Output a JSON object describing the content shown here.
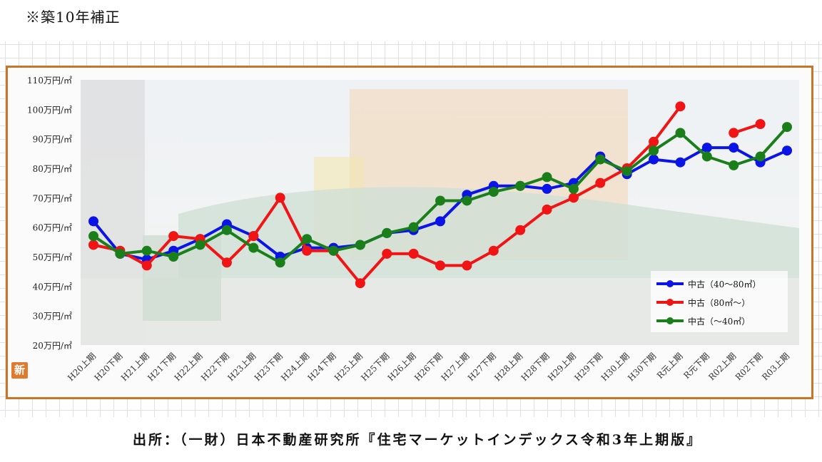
{
  "note": "※築10年補正",
  "source": "出所：（一財）日本不動産研究所『住宅マーケットインデックス令和3年上期版』",
  "badge": "新",
  "chart_data": {
    "type": "line",
    "title": "",
    "xlabel": "",
    "ylabel": "",
    "ylim": [
      20,
      110
    ],
    "y_ticks": [
      110,
      100,
      90,
      80,
      70,
      60,
      50,
      40,
      30,
      20
    ],
    "y_tick_labels": [
      "110万円/㎡",
      "100万円/㎡",
      "90万円/㎡",
      "80万円/㎡",
      "70万円/㎡",
      "60万円/㎡",
      "50万円/㎡",
      "40万円/㎡",
      "30万円/㎡",
      "20万円/㎡"
    ],
    "categories": [
      "H20上期",
      "H20下期",
      "H21上期",
      "H21下期",
      "H22上期",
      "H22下期",
      "H23上期",
      "H23下期",
      "H24上期",
      "H24下期",
      "H25上期",
      "H25下期",
      "H26上期",
      "H26下期",
      "H27上期",
      "H27下期",
      "H28上期",
      "H28下期",
      "H29上期",
      "H29下期",
      "H30上期",
      "H30下期",
      "R元上期",
      "R元下期",
      "R02上期",
      "R02下期",
      "R03上期"
    ],
    "legend_position": "bottom-right",
    "series": [
      {
        "name": "中古（40～80㎡）",
        "color": "#0a14e6",
        "values": [
          62,
          51,
          49,
          52,
          56,
          61,
          57,
          50,
          53,
          53,
          54,
          58,
          59,
          62,
          71,
          74,
          74,
          73,
          75,
          84,
          78,
          83,
          82,
          87,
          87,
          82,
          86
        ]
      },
      {
        "name": "中古（80㎡～）",
        "color": "#f01414",
        "values": [
          54,
          52,
          47,
          57,
          56,
          48,
          57,
          70,
          52,
          52,
          41,
          51,
          51,
          47,
          47,
          52,
          59,
          66,
          70,
          75,
          80,
          89,
          101,
          null,
          92,
          95,
          null
        ]
      },
      {
        "name": "中古（～40㎡）",
        "color": "#1a7f1a",
        "values": [
          57,
          51,
          52,
          50,
          54,
          59,
          53,
          48,
          56,
          52,
          54,
          58,
          60,
          69,
          69,
          72,
          74,
          77,
          73,
          83,
          79,
          86,
          92,
          84,
          81,
          84,
          94
        ]
      }
    ]
  }
}
